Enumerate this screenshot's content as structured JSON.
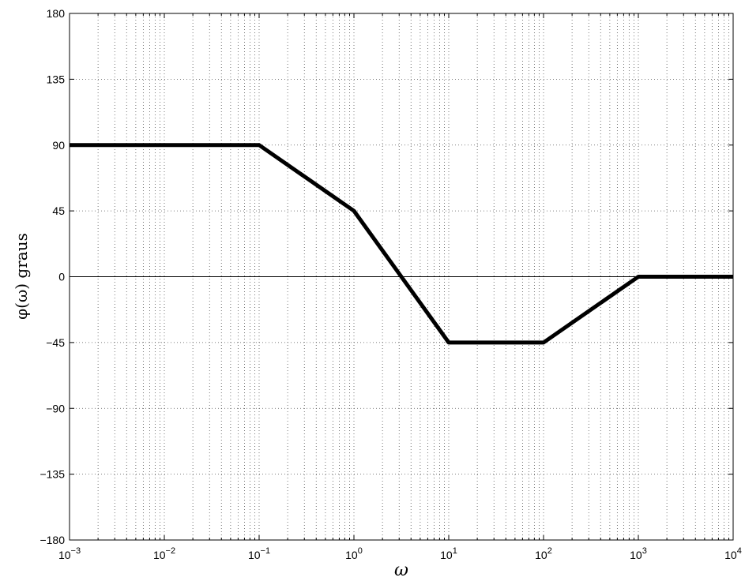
{
  "chart_data": {
    "type": "line",
    "title": "",
    "xlabel": "ω",
    "ylabel": "φ(ω) graus",
    "x_scale": "log",
    "xlim": [
      0.001,
      10000
    ],
    "ylim": [
      -180,
      180
    ],
    "grid": true,
    "x_ticks": [
      {
        "value": 0.001,
        "base": "10",
        "exp": "−3"
      },
      {
        "value": 0.01,
        "base": "10",
        "exp": "−2"
      },
      {
        "value": 0.1,
        "base": "10",
        "exp": "−1"
      },
      {
        "value": 1,
        "base": "10",
        "exp": "0"
      },
      {
        "value": 10,
        "base": "10",
        "exp": "1"
      },
      {
        "value": 100,
        "base": "10",
        "exp": "2"
      },
      {
        "value": 1000,
        "base": "10",
        "exp": "3"
      },
      {
        "value": 10000,
        "base": "10",
        "exp": "4"
      }
    ],
    "y_ticks": [
      {
        "value": 180,
        "label": "180"
      },
      {
        "value": 135,
        "label": "135"
      },
      {
        "value": 90,
        "label": "90"
      },
      {
        "value": 45,
        "label": "45"
      },
      {
        "value": 0,
        "label": "0"
      },
      {
        "value": -45,
        "label": "−45"
      },
      {
        "value": -90,
        "label": "−90"
      },
      {
        "value": -135,
        "label": "−135"
      },
      {
        "value": -180,
        "label": "−180"
      }
    ],
    "series": [
      {
        "x": [
          0.001,
          0.1,
          1,
          10,
          100,
          1000,
          10000
        ],
        "y": [
          90,
          90,
          45,
          -45,
          -45,
          0,
          0
        ]
      }
    ],
    "reference_lines": [
      {
        "axis": "y",
        "value": 0
      }
    ]
  }
}
